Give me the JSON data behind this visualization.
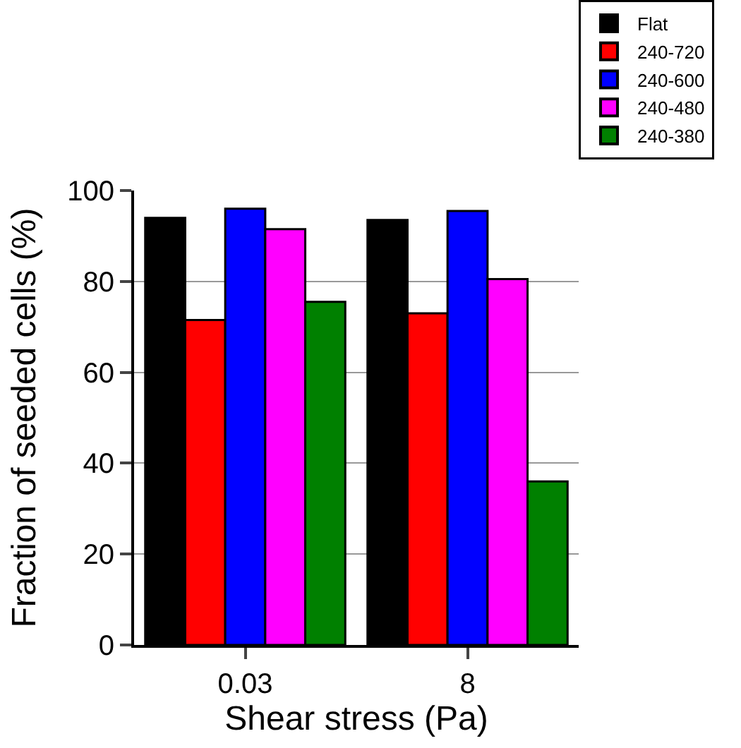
{
  "chart_data": {
    "type": "bar",
    "xlabel": "Shear stress (Pa)",
    "ylabel": "Fraction of seeded cells (%)",
    "categories": [
      "0.03",
      "8"
    ],
    "series": [
      {
        "name": "Flat",
        "color": "#000000",
        "values": [
          94,
          93.5
        ]
      },
      {
        "name": "240-720",
        "color": "#ff0000",
        "values": [
          71.5,
          73
        ]
      },
      {
        "name": "240-600",
        "color": "#0000ff",
        "values": [
          96,
          95.5
        ]
      },
      {
        "name": "240-480",
        "color": "#ff00ff",
        "values": [
          91.5,
          80.5
        ]
      },
      {
        "name": "240-380",
        "color": "#008000",
        "values": [
          75.5,
          36
        ]
      }
    ],
    "ylim": [
      0,
      100
    ],
    "yticks": [
      0,
      20,
      40,
      60,
      80,
      100
    ],
    "grid": "y",
    "legend": "top right"
  }
}
